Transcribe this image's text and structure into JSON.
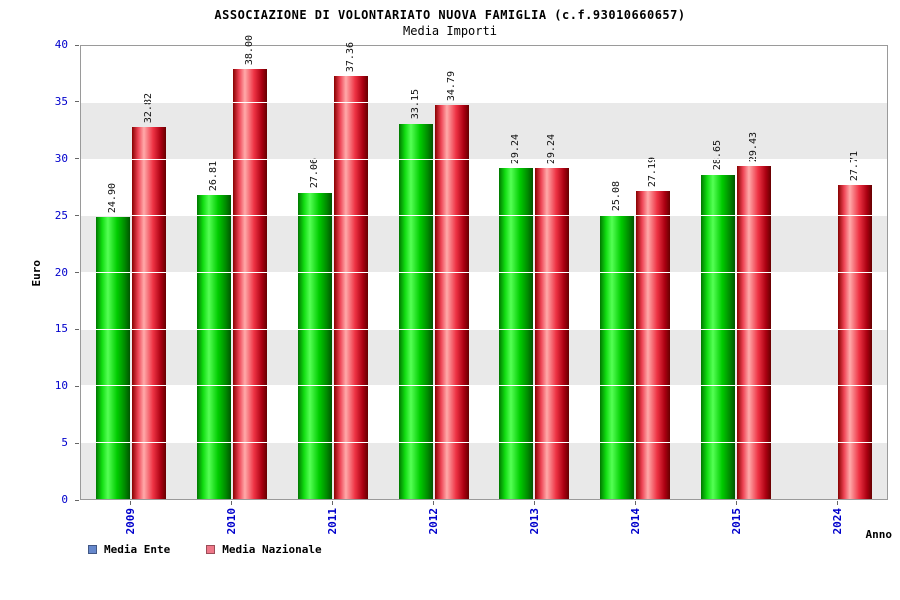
{
  "title": "ASSOCIAZIONE DI VOLONTARIATO NUOVA FAMIGLIA (c.f.93010660657)",
  "subtitle": "Media Importi",
  "chart_data": {
    "type": "bar",
    "categories": [
      "2009",
      "2010",
      "2011",
      "2012",
      "2013",
      "2014",
      "2015",
      "2024"
    ],
    "series": [
      {
        "name": "Media Ente",
        "color": "green",
        "values": [
          24.9,
          26.81,
          27.06,
          33.15,
          29.24,
          25.08,
          28.65,
          null
        ]
      },
      {
        "name": "Media Nazionale",
        "color": "red",
        "values": [
          32.82,
          38.0,
          37.36,
          34.79,
          29.24,
          27.19,
          29.43,
          27.71
        ]
      }
    ],
    "ylabel": "Euro",
    "xlabel": "Anno",
    "ylim": [
      0,
      40
    ],
    "ytick_step": 5,
    "grid": true,
    "legend_position": "bottom-left"
  },
  "legend": {
    "items": [
      {
        "label": "Media Ente",
        "swatch": "#6688cc"
      },
      {
        "label": "Media Nazionale",
        "swatch": "#ee7788"
      }
    ]
  },
  "colors": {
    "tick_label": "#0000cc",
    "bar_green_main": "#00cc00",
    "bar_red_main": "#ee3344",
    "band_gray": "#e9e9e9",
    "plot_border": "#9a9a9a"
  }
}
